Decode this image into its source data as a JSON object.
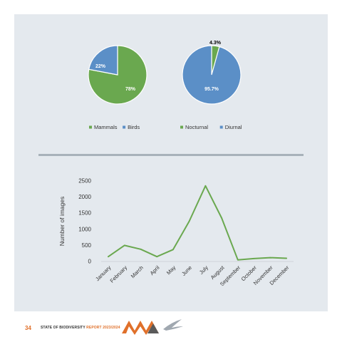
{
  "chart_data": [
    {
      "type": "pie",
      "slices": [
        {
          "label": "Mammals",
          "value": 78,
          "display": "78%",
          "color": "#6aa84f"
        },
        {
          "label": "Birds",
          "value": 22,
          "display": "22%",
          "color": "#5b8fc7"
        }
      ],
      "legend": [
        "Mammals",
        "Birds"
      ],
      "legend_position": "bottom"
    },
    {
      "type": "pie",
      "slices": [
        {
          "label": "Nocturnal",
          "value": 4.3,
          "display": "4.3%",
          "color": "#6aa84f"
        },
        {
          "label": "Diurnal",
          "value": 95.7,
          "display": "95.7%",
          "color": "#5b8fc7"
        }
      ],
      "legend": [
        "Nocturnal",
        "Diurnal"
      ],
      "legend_position": "bottom"
    },
    {
      "type": "line",
      "categories": [
        "January",
        "February",
        "March",
        "April",
        "May",
        "June",
        "July",
        "August",
        "September",
        "October",
        "November",
        "December"
      ],
      "series": [
        {
          "values": [
            150,
            500,
            380,
            150,
            370,
            1250,
            2350,
            1350,
            50,
            90,
            120,
            100
          ],
          "color": "#6aa84f"
        }
      ],
      "ylabel": "Number of images",
      "yticks": [
        0,
        500,
        1000,
        1500,
        2000,
        2500
      ],
      "ylim": [
        0,
        2500
      ],
      "grid": false
    }
  ],
  "footer": {
    "page_number": "34",
    "title_main": "STATE OF BIODIVERSITY",
    "title_accent": "REPORT 2023/2024",
    "logo_colors": [
      "#e0702a",
      "#5a5a5a"
    ]
  }
}
